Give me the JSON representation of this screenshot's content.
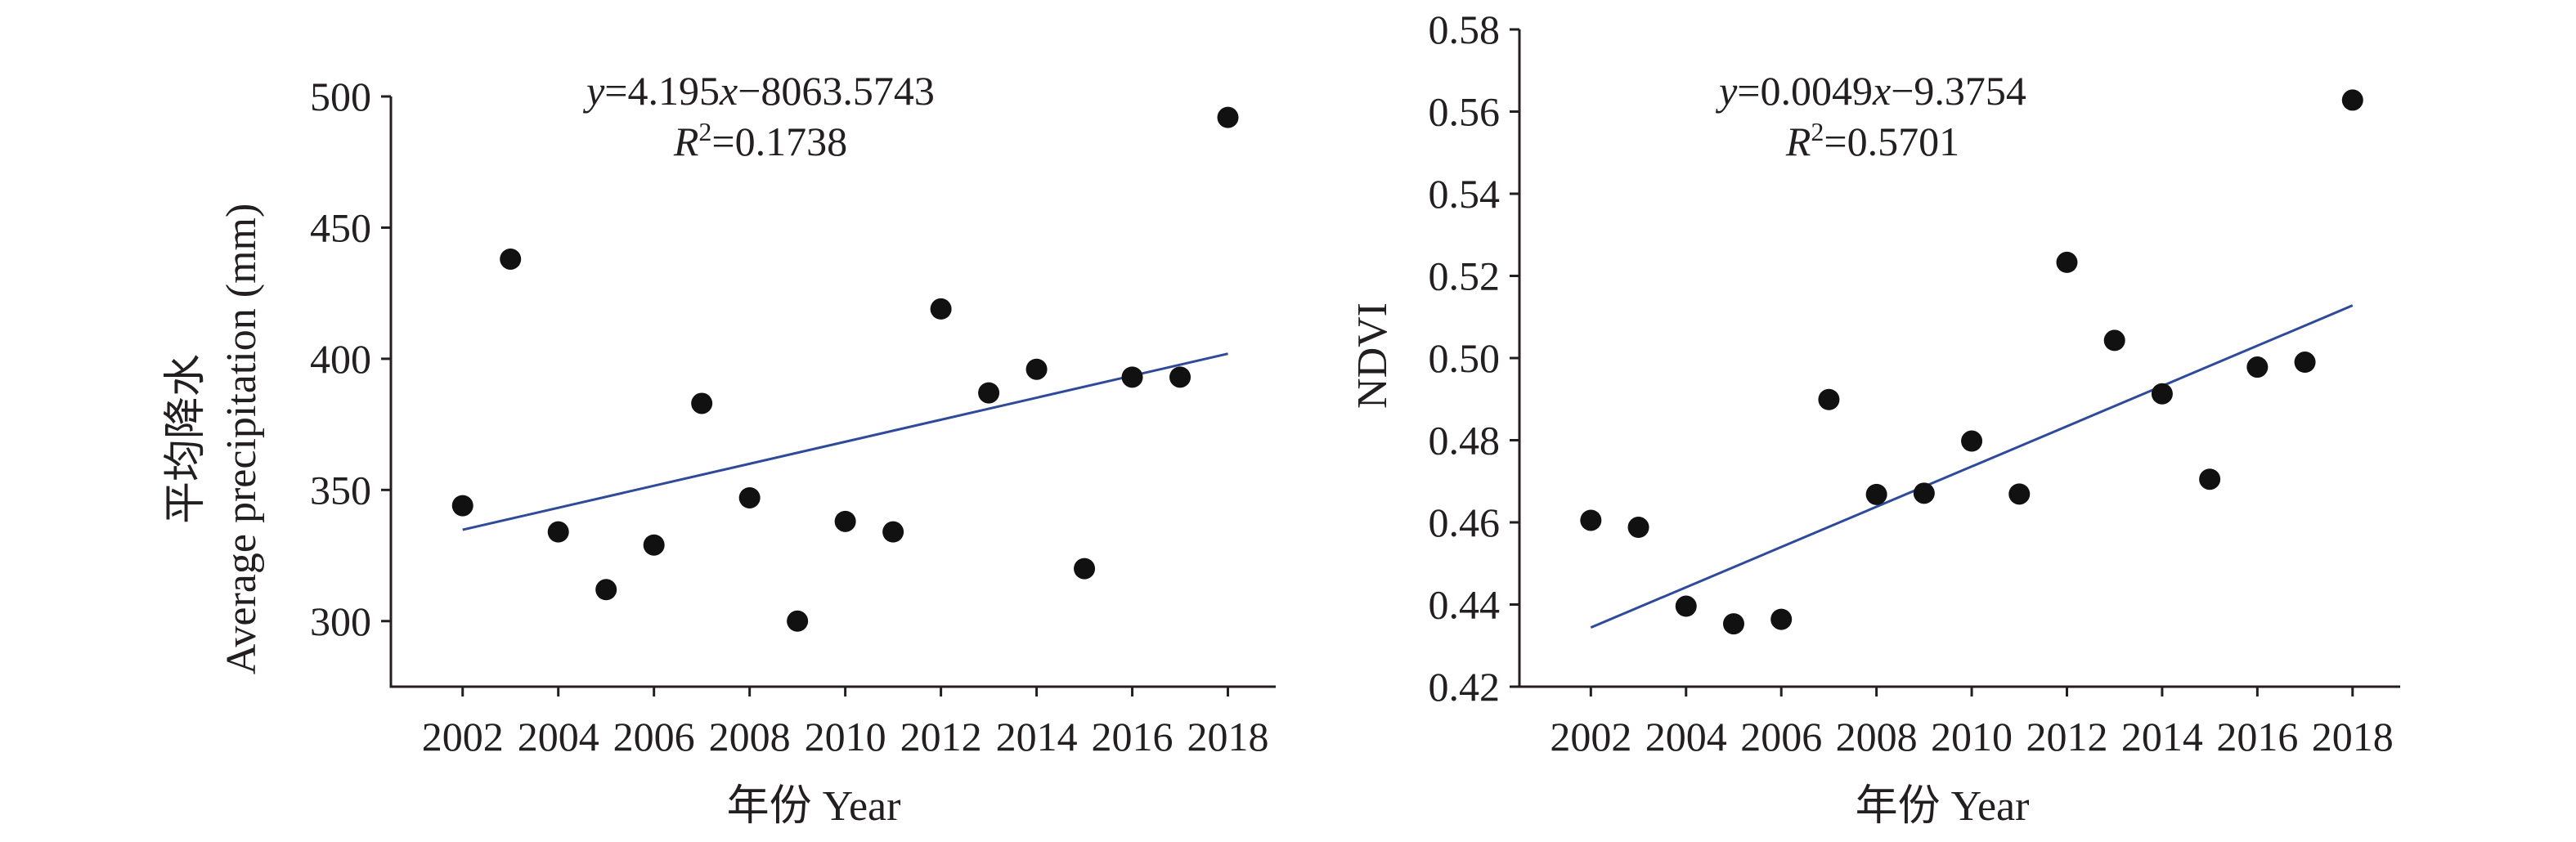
{
  "colors": {
    "axis": "#231f20",
    "point": "#111111",
    "trendline": "#2e4a9a"
  },
  "chart_data": [
    {
      "type": "scatter",
      "xlabel_cn": "年份",
      "xlabel_en": "Year",
      "ylabel_cn": "平均降水",
      "ylabel_en": "Average precipitation (mm)",
      "xlim": [
        2000.5,
        2019
      ],
      "ylim": [
        275,
        500
      ],
      "yticks": [
        300,
        350,
        400,
        450,
        500
      ],
      "ytick_labels": [
        "300",
        "350",
        "400",
        "450",
        "500"
      ],
      "xticks": [
        2002,
        2004,
        2006,
        2008,
        2010,
        2012,
        2014,
        2016,
        2018
      ],
      "xtick_labels": [
        "2002",
        "2004",
        "2006",
        "2008",
        "2010",
        "2012",
        "2014",
        "2016",
        "2018"
      ],
      "x": [
        2002,
        2003,
        2004,
        2005,
        2006,
        2007,
        2008,
        2009,
        2010,
        2011,
        2012,
        2013,
        2014,
        2015,
        2016,
        2017,
        2018
      ],
      "y": [
        344,
        438,
        334,
        312,
        329,
        383,
        347,
        300,
        338,
        334,
        419,
        387,
        396,
        320,
        393,
        393,
        492
      ],
      "trendline": {
        "slope": 4.195,
        "intercept": -8063.5743,
        "x_range": [
          2002,
          2018
        ]
      },
      "equation": {
        "y": "y",
        "eq1": "=4.195",
        "x": "x",
        "eq2": "−8063.5743",
        "r": "R",
        "sup": "2",
        "r2": "=0.1738"
      },
      "grid": false
    },
    {
      "type": "scatter",
      "xlabel_cn": "年份",
      "xlabel_en": "Year",
      "ylabel": "NDVI",
      "xlim": [
        2000.5,
        2019
      ],
      "ylim": [
        0.42,
        0.58
      ],
      "yticks": [
        0.42,
        0.44,
        0.46,
        0.48,
        0.5,
        0.52,
        0.54,
        0.56,
        0.58
      ],
      "ytick_labels": [
        "0.42",
        "0.44",
        "0.46",
        "0.48",
        "0.50",
        "0.52",
        "0.54",
        "0.56",
        "0.58"
      ],
      "xticks": [
        2002,
        2004,
        2006,
        2008,
        2010,
        2012,
        2014,
        2016,
        2018
      ],
      "xtick_labels": [
        "2002",
        "2004",
        "2006",
        "2008",
        "2010",
        "2012",
        "2014",
        "2016",
        "2018"
      ],
      "x": [
        2002,
        2003,
        2004,
        2005,
        2006,
        2007,
        2008,
        2009,
        2010,
        2011,
        2012,
        2013,
        2014,
        2015,
        2016,
        2017,
        2018
      ],
      "y": [
        0.4605,
        0.4588,
        0.4396,
        0.4353,
        0.4364,
        0.4899,
        0.4668,
        0.4671,
        0.4798,
        0.4669,
        0.5233,
        0.5043,
        0.4913,
        0.4705,
        0.4978,
        0.499,
        0.5628
      ],
      "trendline": {
        "slope": 0.0049,
        "intercept": -9.3754,
        "x_range": [
          2002,
          2018
        ]
      },
      "equation": {
        "y": "y",
        "eq1": "=0.0049",
        "x": "x",
        "eq2": "−9.3754",
        "r": "R",
        "sup": "2",
        "r2": "=0.5701"
      },
      "grid": false
    }
  ]
}
